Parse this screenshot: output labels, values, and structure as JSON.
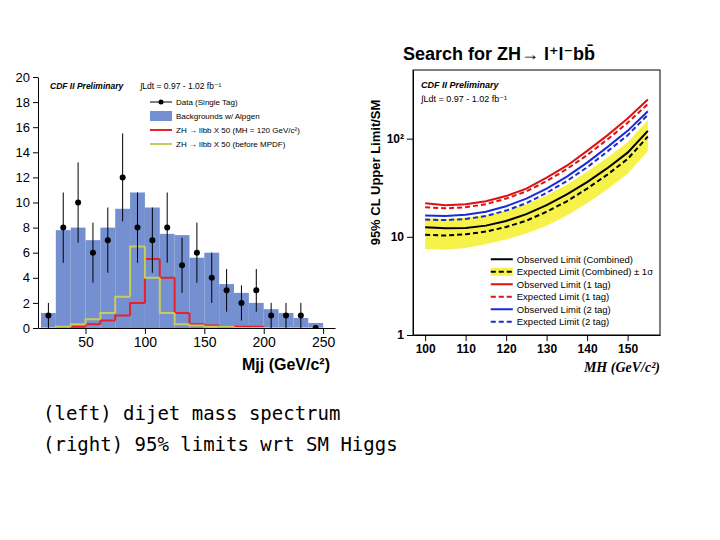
{
  "chart_data": [
    {
      "type": "histogram",
      "annotations": [
        "CDF II Preliminary",
        "∫Ldt = 0.97 - 1.02 fb⁻¹"
      ],
      "x_label": "Mjj (GeV/c²)",
      "bins": [
        12.5,
        25,
        37.5,
        50,
        62.5,
        75,
        87.5,
        100,
        112.5,
        125,
        137.5,
        150,
        162.5,
        175,
        187.5,
        200,
        212.5,
        225,
        237.5,
        250
      ],
      "xlim": [
        10,
        260
      ],
      "xticks": [
        50,
        100,
        150,
        200,
        250
      ],
      "ylim": [
        0,
        20
      ],
      "yticks": [
        0,
        2,
        4,
        6,
        8,
        10,
        12,
        14,
        16,
        18,
        20
      ],
      "legend": "upper right",
      "series": [
        {
          "name": "Data (Single Tag)",
          "type": "scatter",
          "marker": "circle",
          "color": "#000000",
          "values": [
            1,
            8,
            10,
            6,
            7,
            12,
            8,
            7,
            8,
            5,
            6,
            4,
            3,
            2,
            3,
            1,
            1,
            1,
            0
          ],
          "errors": [
            1,
            2.8,
            3.2,
            2.4,
            2.6,
            3.5,
            2.8,
            2.6,
            2.8,
            2.2,
            2.4,
            2,
            1.7,
            1.4,
            1.7,
            1,
            1,
            1,
            0
          ]
        },
        {
          "name": "Backgrounds w/ Alpgen",
          "type": "bar",
          "color": "#7490d0",
          "values": [
            1.2,
            7.8,
            8.0,
            7.0,
            8.0,
            9.5,
            10.8,
            9.6,
            7.5,
            7.4,
            5.6,
            6.0,
            3.5,
            2.8,
            2.0,
            1.5,
            1.2,
            0.8,
            0.4
          ]
        },
        {
          "name": "ZH → llbb X 50 (MH = 120 GeV/c²)",
          "type": "step",
          "color": "#e8202a",
          "values": [
            0,
            0,
            0.1,
            0.3,
            0.6,
            1.0,
            2.0,
            5.5,
            4.0,
            1.2,
            0.3,
            0.2,
            0.1,
            0.1,
            0.1,
            0,
            0,
            0,
            0
          ]
        },
        {
          "name": "ZH → llbb X 50 (before MPDF)",
          "type": "step",
          "color": "#c8cc5a",
          "values": [
            0,
            0.1,
            0.3,
            0.7,
            1.2,
            2.5,
            6.5,
            4.0,
            1.2,
            0.3,
            0.2,
            0.1,
            0.1,
            0,
            0,
            0,
            0,
            0,
            0
          ]
        }
      ]
    },
    {
      "type": "line",
      "title": "Search for ZH→ l⁺l⁻bb̄",
      "annotations": [
        "CDF II Preliminary",
        "∫Ldt = 0.97 - 1.02 fb⁻¹"
      ],
      "x_label": "MH (GeV/c²)",
      "y_label": "95% CL Upper Limit/SM",
      "log": "y",
      "x": [
        100,
        105,
        110,
        115,
        120,
        125,
        130,
        135,
        140,
        145,
        150,
        155
      ],
      "xlim": [
        97,
        158
      ],
      "xticks": [
        100,
        110,
        120,
        130,
        140,
        150
      ],
      "ylim": [
        1,
        500
      ],
      "yticks": [
        1,
        10,
        {
          "value": 100,
          "label": "10²"
        }
      ],
      "legend": "lower right",
      "series": [
        {
          "name": "Observed Limit (Combined)",
          "color": "#000000",
          "line_style": "solid",
          "values": [
            12.5,
            12.2,
            12.3,
            13.0,
            14.5,
            17,
            21,
            27,
            36,
            50,
            72,
            120
          ]
        },
        {
          "name": "Expected Limit (Combined) ± 1σ",
          "color": "#000000",
          "line_style": "dashed",
          "values": [
            10.5,
            10.3,
            10.6,
            11.3,
            12.6,
            14.6,
            18,
            23,
            31,
            43,
            62,
            105
          ],
          "lower": [
            7.5,
            7.4,
            7.7,
            8.4,
            9.4,
            10.8,
            13,
            16.5,
            22,
            30.5,
            44,
            75
          ],
          "upper": [
            15.5,
            15.2,
            15.6,
            16.6,
            18.5,
            21.5,
            26.5,
            34,
            46,
            64,
            92,
            155
          ]
        },
        {
          "name": "Observed Limit (1 tag)",
          "color": "#dd1111",
          "line_style": "solid",
          "values": [
            22,
            21,
            21.5,
            23,
            26,
            31,
            40,
            53,
            75,
            108,
            160,
            250
          ]
        },
        {
          "name": "Expected Limit (1 tag)",
          "color": "#dd1111",
          "line_style": "dashed",
          "values": [
            20,
            19.5,
            20,
            21.5,
            24.5,
            29,
            37,
            49,
            68,
            98,
            145,
            225
          ]
        },
        {
          "name": "Observed Limit (2 tag)",
          "color": "#1a2bd6",
          "line_style": "solid",
          "values": [
            16.5,
            16.3,
            16.8,
            18,
            20.5,
            24.5,
            31,
            41,
            57,
            82,
            120,
            190
          ]
        },
        {
          "name": "Expected Limit (2 tag)",
          "color": "#1a2bd6",
          "line_style": "dashed",
          "values": [
            15,
            14.8,
            15.2,
            16.3,
            18.5,
            22,
            28,
            37,
            51,
            74,
            108,
            175
          ]
        }
      ]
    }
  ],
  "caption": [
    "(left) dijet mass spectrum",
    "(right) 95% limits wrt SM Higgs"
  ]
}
